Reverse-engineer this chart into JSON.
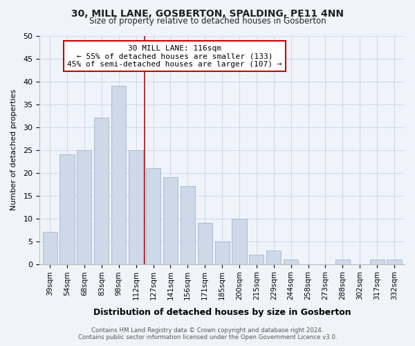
{
  "title": "30, MILL LANE, GOSBERTON, SPALDING, PE11 4NN",
  "subtitle": "Size of property relative to detached houses in Gosberton",
  "xlabel": "Distribution of detached houses by size in Gosberton",
  "ylabel": "Number of detached properties",
  "categories": [
    "39sqm",
    "54sqm",
    "68sqm",
    "83sqm",
    "98sqm",
    "112sqm",
    "127sqm",
    "141sqm",
    "156sqm",
    "171sqm",
    "185sqm",
    "200sqm",
    "215sqm",
    "229sqm",
    "244sqm",
    "258sqm",
    "273sqm",
    "288sqm",
    "302sqm",
    "317sqm",
    "332sqm"
  ],
  "values": [
    7,
    24,
    25,
    32,
    39,
    25,
    21,
    19,
    17,
    9,
    5,
    10,
    2,
    3,
    1,
    0,
    0,
    1,
    0,
    1,
    1
  ],
  "bar_color": "#cdd9e8",
  "bar_edge_color": "#a8bcd0",
  "vline_x": 5.5,
  "vline_color": "#b22222",
  "annotation_title": "30 MILL LANE: 116sqm",
  "annotation_line1": "← 55% of detached houses are smaller (133)",
  "annotation_line2": "45% of semi-detached houses are larger (107) →",
  "annotation_box_color": "#ffffff",
  "annotation_box_edge": "#cc0000",
  "ylim": [
    0,
    50
  ],
  "yticks": [
    0,
    5,
    10,
    15,
    20,
    25,
    30,
    35,
    40,
    45,
    50
  ],
  "footer_line1": "Contains HM Land Registry data © Crown copyright and database right 2024.",
  "footer_line2": "Contains public sector information licensed under the Open Government Licence v3.0.",
  "bg_color": "#f0f4fa",
  "grid_color": "#d0daea",
  "title_fontsize": 10,
  "subtitle_fontsize": 8.5,
  "ylabel_fontsize": 8,
  "xlabel_fontsize": 9
}
